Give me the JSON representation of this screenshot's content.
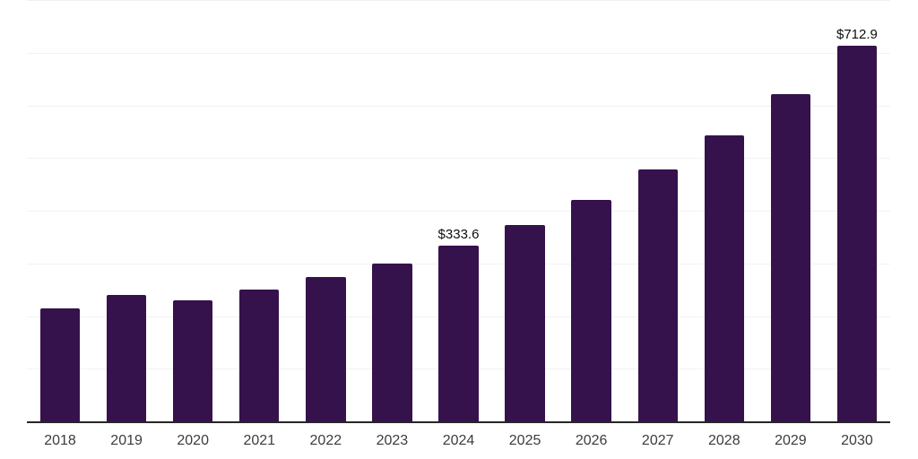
{
  "chart_data": {
    "type": "bar",
    "title": "",
    "xlabel": "",
    "ylabel": "",
    "categories": [
      "2018",
      "2019",
      "2020",
      "2021",
      "2022",
      "2023",
      "2024",
      "2025",
      "2026",
      "2027",
      "2028",
      "2029",
      "2030"
    ],
    "values": [
      215,
      240,
      229,
      251,
      274,
      300,
      333.6,
      372,
      420,
      479,
      543,
      622,
      712.9
    ],
    "data_labels": {
      "2024": "$333.6",
      "2030": "$712.9"
    },
    "ylim": [
      0,
      800
    ],
    "gridline_interval": 100,
    "grid": "horizontal",
    "legend": "none",
    "y_axis_tick_labels_visible": false
  },
  "colors": {
    "background": "#ffffff",
    "bar": "#35124b",
    "axis_line": "#262626",
    "gridline": "#f2f2f3",
    "data_label": "#0d0d0d",
    "tick_label": "#3c3c3c"
  }
}
